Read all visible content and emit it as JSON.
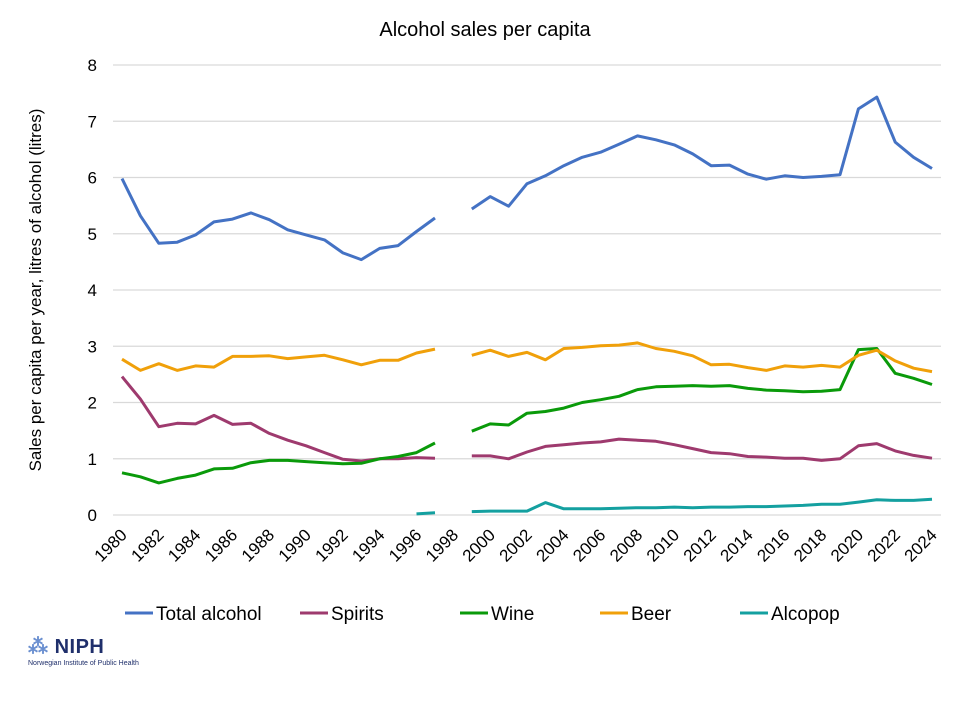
{
  "chart_data": {
    "type": "line",
    "title": "Alcohol sales per capita",
    "xlabel": "",
    "ylabel": "Sales per capita per year, litres of alcohol (litres)",
    "ylim": [
      0,
      8
    ],
    "yticks": [
      0,
      1,
      2,
      3,
      4,
      5,
      6,
      7,
      8
    ],
    "xlim": [
      1980,
      2024
    ],
    "xticks": [
      1980,
      1982,
      1984,
      1986,
      1988,
      1990,
      1992,
      1994,
      1996,
      1998,
      2000,
      2002,
      2004,
      2006,
      2008,
      2010,
      2012,
      2014,
      2016,
      2018,
      2020,
      2022,
      2024
    ],
    "grid": true,
    "legend": "bottom",
    "x": [
      1980,
      1981,
      1982,
      1983,
      1984,
      1985,
      1986,
      1987,
      1988,
      1989,
      1990,
      1991,
      1992,
      1993,
      1994,
      1995,
      1996,
      1997,
      1998,
      1999,
      2000,
      2001,
      2002,
      2003,
      2004,
      2005,
      2006,
      2007,
      2008,
      2009,
      2010,
      2011,
      2012,
      2013,
      2014,
      2015,
      2016,
      2017,
      2018,
      2019,
      2020,
      2021,
      2022,
      2023,
      2024
    ],
    "series": [
      {
        "name": "Total alcohol",
        "color": "#4472c4",
        "values": [
          5.98,
          5.32,
          4.83,
          4.85,
          4.98,
          5.21,
          5.26,
          5.37,
          5.25,
          5.07,
          4.98,
          4.89,
          4.66,
          4.54,
          4.74,
          4.79,
          5.04,
          5.28,
          null,
          5.44,
          5.66,
          5.49,
          5.89,
          6.03,
          6.21,
          6.36,
          6.45,
          6.59,
          6.74,
          6.67,
          6.58,
          6.42,
          6.21,
          6.22,
          6.06,
          5.97,
          6.03,
          6.0,
          6.02,
          6.05,
          7.22,
          7.43,
          6.63,
          6.36,
          6.16
        ]
      },
      {
        "name": "Spirits",
        "color": "#9e3a6e",
        "values": [
          2.46,
          2.06,
          1.57,
          1.63,
          1.62,
          1.77,
          1.61,
          1.63,
          1.45,
          1.33,
          1.23,
          1.11,
          0.99,
          0.96,
          1.0,
          1.0,
          1.02,
          1.01,
          null,
          1.05,
          1.05,
          1.0,
          1.12,
          1.22,
          1.25,
          1.28,
          1.3,
          1.35,
          1.33,
          1.31,
          1.25,
          1.18,
          1.11,
          1.09,
          1.04,
          1.03,
          1.01,
          1.01,
          0.97,
          1.0,
          1.23,
          1.27,
          1.14,
          1.06,
          1.01
        ]
      },
      {
        "name": "Wine",
        "color": "#0a9a0a",
        "values": [
          0.75,
          0.68,
          0.57,
          0.65,
          0.71,
          0.82,
          0.83,
          0.93,
          0.97,
          0.97,
          0.95,
          0.93,
          0.91,
          0.92,
          1.0,
          1.04,
          1.11,
          1.28,
          null,
          1.49,
          1.62,
          1.6,
          1.81,
          1.84,
          1.9,
          2.0,
          2.05,
          2.11,
          2.23,
          2.28,
          2.29,
          2.3,
          2.29,
          2.3,
          2.25,
          2.22,
          2.21,
          2.19,
          2.2,
          2.23,
          2.94,
          2.96,
          2.52,
          2.43,
          2.32
        ]
      },
      {
        "name": "Beer",
        "color": "#f0a00a",
        "values": [
          2.77,
          2.57,
          2.69,
          2.57,
          2.65,
          2.63,
          2.82,
          2.82,
          2.83,
          2.78,
          2.81,
          2.84,
          2.76,
          2.67,
          2.75,
          2.75,
          2.88,
          2.95,
          null,
          2.84,
          2.93,
          2.82,
          2.89,
          2.76,
          2.96,
          2.98,
          3.01,
          3.02,
          3.06,
          2.96,
          2.91,
          2.83,
          2.67,
          2.68,
          2.62,
          2.57,
          2.65,
          2.63,
          2.66,
          2.63,
          2.84,
          2.93,
          2.74,
          2.61,
          2.55
        ]
      },
      {
        "name": "Alcopop",
        "color": "#14a0a0",
        "values": [
          null,
          null,
          null,
          null,
          null,
          null,
          null,
          null,
          null,
          null,
          null,
          null,
          null,
          null,
          null,
          null,
          0.02,
          0.04,
          null,
          0.06,
          0.07,
          0.07,
          0.07,
          0.22,
          0.11,
          0.11,
          0.11,
          0.12,
          0.13,
          0.13,
          0.14,
          0.13,
          0.14,
          0.14,
          0.15,
          0.15,
          0.16,
          0.17,
          0.19,
          0.19,
          0.23,
          0.27,
          0.26,
          0.26,
          0.28
        ]
      }
    ]
  },
  "logo": {
    "name": "NIPH",
    "subtitle": "Norwegian Institute of Public Health"
  }
}
